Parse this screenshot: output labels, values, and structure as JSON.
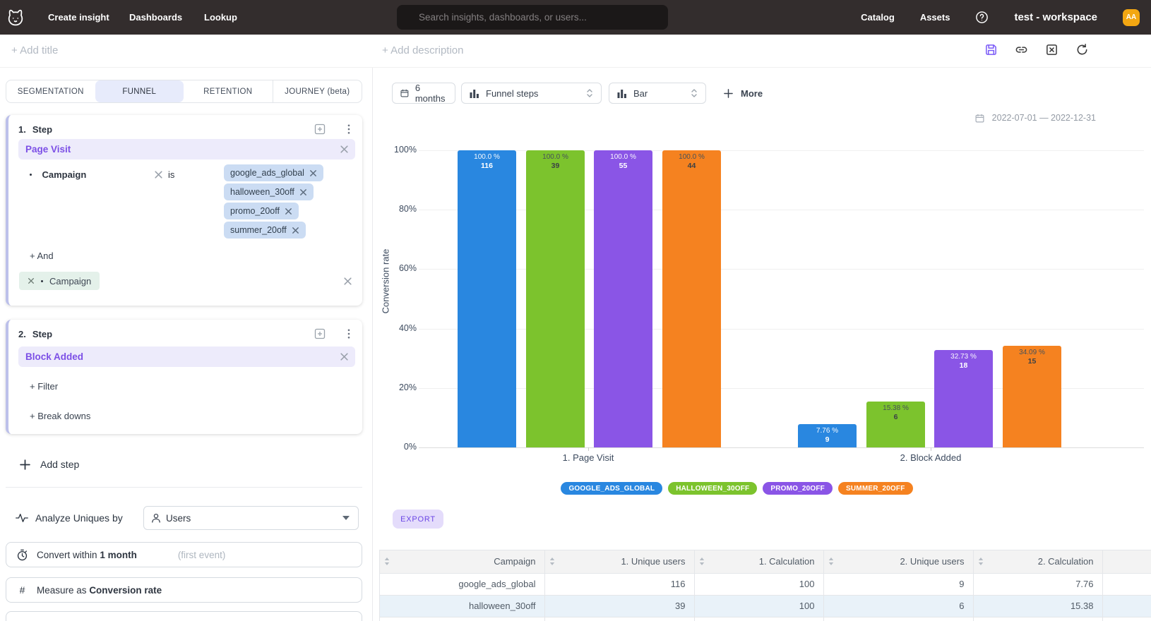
{
  "navbar": {
    "links": [
      "Create insight",
      "Dashboards",
      "Lookup"
    ],
    "search_placeholder": "Search insights, dashboards, or users...",
    "right_links": [
      "Catalog",
      "Assets"
    ],
    "workspace": "test - workspace",
    "avatar_initials": "AA",
    "avatar_color": "#f3a712"
  },
  "titlebar": {
    "add_title": "+ Add title",
    "add_description": "+ Add description"
  },
  "tabs": {
    "items": [
      "SEGMENTATION",
      "FUNNEL",
      "RETENTION",
      "JOURNEY (beta)"
    ],
    "active": "FUNNEL"
  },
  "step1": {
    "number": "1.",
    "title": "Step",
    "event": "Page Visit",
    "filter": {
      "property": "Campaign",
      "operator": "is",
      "values": [
        "google_ads_global",
        "halloween_30off",
        "promo_20off",
        "summer_20off"
      ]
    },
    "add_and": "+ And",
    "breakdown": "Campaign"
  },
  "step2": {
    "number": "2.",
    "title": "Step",
    "event": "Block Added",
    "add_filter": "+ Filter",
    "add_breakdown": "+ Break downs"
  },
  "left_panel": {
    "add_step": "Add step",
    "analyze_label": "Analyze Uniques by",
    "analyze_value": "Users",
    "convert_prefix": "Convert within",
    "convert_value": "1 month",
    "convert_hint": "(first event)",
    "measure_prefix": "Measure as",
    "measure_value": "Conversion rate"
  },
  "toolbar": {
    "date_button": "6 months",
    "chart_type": "Funnel steps",
    "visualization": "Bar",
    "more_label": "More"
  },
  "date_range": "2022-07-01 — 2022-12-31",
  "chart_data": {
    "type": "bar",
    "title": "",
    "ylabel": "Conversion rate",
    "ylim": [
      0,
      100
    ],
    "yticks": [
      "0%",
      "20%",
      "40%",
      "60%",
      "80%",
      "100%"
    ],
    "grid": true,
    "legend_position": "bottom",
    "categories": [
      "1. Page Visit",
      "2. Block Added"
    ],
    "series": [
      {
        "name": "google_ads_global",
        "legend": "GOOGLE_ADS_GLOBAL",
        "color": "#2987e0",
        "label_style": "light",
        "pct": [
          100.0,
          7.76
        ],
        "pct_labels": [
          "100.0 %",
          "7.76 %"
        ],
        "counts": [
          116,
          9
        ]
      },
      {
        "name": "halloween_30off",
        "legend": "HALLOWEEN_30OFF",
        "color": "#7cc32d",
        "label_style": "dark",
        "pct": [
          100.0,
          15.38
        ],
        "pct_labels": [
          "100.0 %",
          "15.38 %"
        ],
        "counts": [
          39,
          6
        ]
      },
      {
        "name": "promo_20off",
        "legend": "PROMO_20OFF",
        "color": "#8a55e6",
        "label_style": "light",
        "pct": [
          100.0,
          32.73
        ],
        "pct_labels": [
          "100.0 %",
          "32.73 %"
        ],
        "counts": [
          55,
          18
        ]
      },
      {
        "name": "summer_20off",
        "legend": "SUMMER_20OFF",
        "color": "#f58220",
        "label_style": "dark",
        "pct": [
          100.0,
          34.09
        ],
        "pct_labels": [
          "100.0 %",
          "34.09 %"
        ],
        "counts": [
          44,
          15
        ]
      }
    ]
  },
  "export_label": "EXPORT",
  "table": {
    "columns": [
      "Campaign",
      "1. Unique users",
      "1. Calculation",
      "2. Unique users",
      "2. Calculation"
    ],
    "rows": [
      [
        "google_ads_global",
        "116",
        "100",
        "9",
        "7.76"
      ],
      [
        "halloween_30off",
        "39",
        "100",
        "6",
        "15.38"
      ]
    ]
  }
}
